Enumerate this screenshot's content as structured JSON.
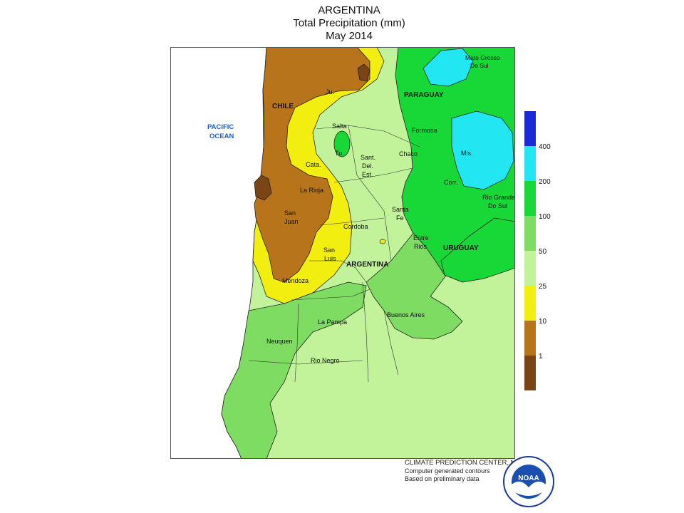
{
  "header": {
    "country": "ARGENTINA",
    "variable": "Total Precipitation (mm)",
    "period": "May 2014"
  },
  "map": {
    "ocean_label_1": "PACIFIC",
    "ocean_label_2": "OCEAN",
    "labels": {
      "chile": "CHILE",
      "paraguay": "PARAGUAY",
      "uruguay": "URUGUAY",
      "argentina": "ARGENTINA",
      "mato_grosso_1": "Mato Grosso",
      "mato_grosso_2": "Do Sul",
      "jujuy": "Ju.",
      "salta": "Salta",
      "formosa": "Formosa",
      "tucuman": "Tu.",
      "chaco": "Chaco",
      "misiones": "Mis.",
      "sant_1": "Sant.",
      "sant_2": "Del.",
      "sant_3": "Est.",
      "catamarca": "Cata.",
      "corrientes": "Corr.",
      "la_rioja": "La Rioja",
      "rio_grande_1": "Rio Grande",
      "rio_grande_2": "Do Sul",
      "san_juan_1": "San",
      "san_juan_2": "Juan",
      "santa_fe_1": "Santa",
      "santa_fe_2": "Fe",
      "cordoba": "Cordoba",
      "entre_rios_1": "Entre",
      "entre_rios_2": "Rios",
      "san_luis_1": "San",
      "san_luis_2": "Luis",
      "mendoza": "Mendoza",
      "buenos_aires": "Buenos Aires",
      "la_pampa": "La Pampa",
      "neuquen": "Neuquen",
      "rio_negro": "Rio Negro"
    }
  },
  "legend": {
    "levels": [
      "400",
      "200",
      "100",
      "50",
      "25",
      "10",
      "1"
    ],
    "colors": [
      "#1a2ad8",
      "#22e6f2",
      "#18d838",
      "#7edc62",
      "#c2f29a",
      "#f2ee10",
      "#b8741a",
      "#7a4414"
    ]
  },
  "credits": {
    "line1": "CLIMATE PREDICTION CENTER, NOAA",
    "line2": "Computer generated contours",
    "line3": "Based on preliminary data",
    "logo_text": "NOAA"
  }
}
